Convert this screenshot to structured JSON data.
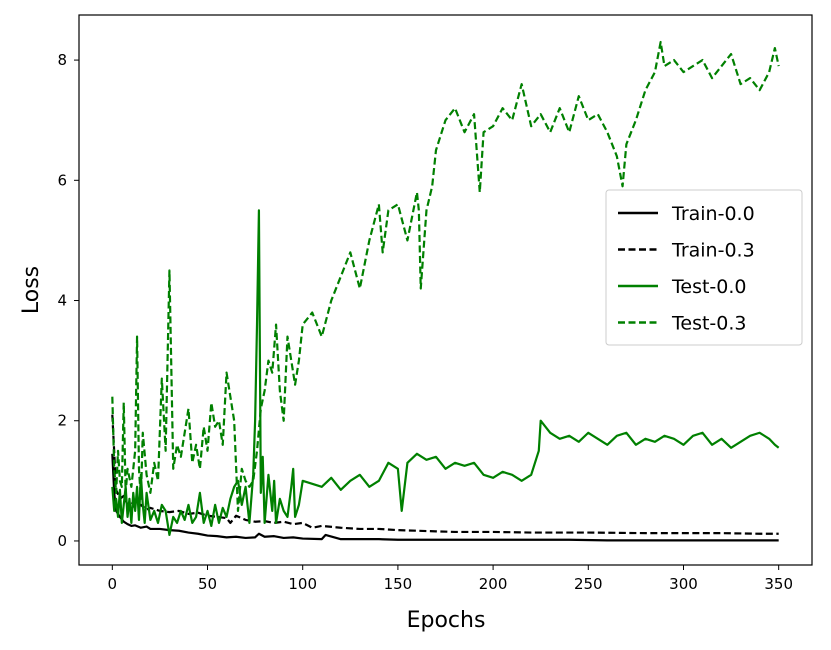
{
  "chart_data": {
    "type": "line",
    "title": "",
    "xlabel": "Epochs",
    "ylabel": "Loss",
    "xlim": [
      -17.5,
      367.5
    ],
    "ylim": [
      -0.4,
      8.75
    ],
    "xticks": [
      0,
      50,
      100,
      150,
      200,
      250,
      300,
      350
    ],
    "yticks": [
      0,
      2,
      4,
      6,
      8
    ],
    "grid": false,
    "legend_position": "center-right",
    "series": [
      {
        "name": "Train-0.0",
        "color": "#000000",
        "style": "solid",
        "x": [
          0,
          1,
          2,
          4,
          6,
          8,
          10,
          12,
          15,
          18,
          20,
          25,
          30,
          35,
          40,
          45,
          50,
          55,
          60,
          65,
          70,
          75,
          77,
          80,
          85,
          90,
          95,
          100,
          110,
          112,
          120,
          130,
          140,
          150,
          160,
          170,
          180,
          190,
          200,
          220,
          240,
          260,
          280,
          300,
          320,
          340,
          350
        ],
        "y": [
          1.45,
          0.8,
          0.5,
          0.4,
          0.32,
          0.28,
          0.25,
          0.26,
          0.22,
          0.24,
          0.2,
          0.2,
          0.18,
          0.17,
          0.14,
          0.12,
          0.09,
          0.08,
          0.06,
          0.07,
          0.05,
          0.06,
          0.12,
          0.07,
          0.08,
          0.05,
          0.06,
          0.04,
          0.03,
          0.1,
          0.03,
          0.03,
          0.03,
          0.02,
          0.02,
          0.02,
          0.02,
          0.02,
          0.02,
          0.02,
          0.02,
          0.01,
          0.01,
          0.01,
          0.01,
          0.01,
          0.01
        ]
      },
      {
        "name": "Train-0.3",
        "color": "#000000",
        "style": "dashed",
        "x": [
          0,
          2,
          4,
          6,
          8,
          10,
          12,
          15,
          18,
          20,
          25,
          30,
          35,
          40,
          45,
          50,
          55,
          60,
          62,
          65,
          70,
          75,
          80,
          85,
          90,
          95,
          100,
          105,
          110,
          120,
          130,
          140,
          150,
          160,
          170,
          180,
          200,
          220,
          250,
          280,
          300,
          320,
          340,
          350
        ],
        "y": [
          2.1,
          0.85,
          0.7,
          0.75,
          0.6,
          0.65,
          0.55,
          0.6,
          0.52,
          0.55,
          0.5,
          0.48,
          0.5,
          0.45,
          0.47,
          0.42,
          0.4,
          0.38,
          0.3,
          0.42,
          0.35,
          0.32,
          0.33,
          0.3,
          0.32,
          0.28,
          0.3,
          0.22,
          0.25,
          0.22,
          0.2,
          0.2,
          0.18,
          0.17,
          0.16,
          0.15,
          0.15,
          0.14,
          0.14,
          0.13,
          0.13,
          0.13,
          0.12,
          0.12
        ]
      },
      {
        "name": "Test-0.0",
        "color": "#008000",
        "style": "solid",
        "x": [
          0,
          1,
          2,
          3,
          4,
          5,
          6,
          7,
          8,
          9,
          10,
          11,
          12,
          13,
          14,
          15,
          16,
          17,
          18,
          20,
          22,
          24,
          26,
          28,
          30,
          32,
          34,
          36,
          38,
          40,
          42,
          44,
          46,
          48,
          50,
          52,
          54,
          56,
          58,
          60,
          62,
          64,
          66,
          68,
          70,
          72,
          74,
          75,
          76,
          77,
          78,
          79,
          80,
          82,
          84,
          85,
          86,
          88,
          90,
          92,
          94,
          95,
          96,
          98,
          100,
          105,
          110,
          115,
          120,
          125,
          130,
          135,
          140,
          145,
          150,
          152,
          155,
          160,
          165,
          170,
          175,
          180,
          185,
          190,
          195,
          200,
          205,
          210,
          215,
          220,
          222,
          224,
          225,
          230,
          235,
          240,
          245,
          250,
          255,
          260,
          265,
          270,
          275,
          280,
          285,
          290,
          295,
          300,
          305,
          310,
          315,
          320,
          325,
          330,
          335,
          340,
          345,
          348,
          350
        ],
        "y": [
          0.9,
          0.5,
          0.7,
          0.4,
          0.85,
          0.3,
          0.6,
          0.9,
          0.4,
          0.7,
          0.3,
          0.8,
          0.5,
          0.9,
          0.35,
          1.1,
          0.6,
          0.3,
          0.8,
          0.35,
          0.5,
          0.3,
          0.6,
          0.5,
          0.1,
          0.4,
          0.3,
          0.5,
          0.35,
          0.6,
          0.3,
          0.4,
          0.8,
          0.3,
          0.5,
          0.25,
          0.6,
          0.3,
          0.55,
          0.4,
          0.7,
          0.9,
          1.0,
          0.6,
          0.9,
          0.3,
          1.1,
          2.0,
          3.6,
          5.5,
          0.8,
          1.4,
          0.3,
          1.1,
          0.5,
          1.0,
          0.3,
          0.7,
          0.5,
          0.4,
          0.9,
          1.2,
          0.4,
          0.6,
          1.0,
          0.95,
          0.9,
          1.05,
          0.85,
          1.0,
          1.1,
          0.9,
          1.0,
          1.3,
          1.2,
          0.5,
          1.3,
          1.45,
          1.35,
          1.4,
          1.2,
          1.3,
          1.25,
          1.3,
          1.1,
          1.05,
          1.15,
          1.1,
          1.0,
          1.1,
          1.3,
          1.5,
          2.0,
          1.8,
          1.7,
          1.75,
          1.65,
          1.8,
          1.7,
          1.6,
          1.75,
          1.8,
          1.6,
          1.7,
          1.65,
          1.75,
          1.7,
          1.6,
          1.75,
          1.8,
          1.6,
          1.7,
          1.55,
          1.65,
          1.75,
          1.8,
          1.7,
          1.6,
          1.55
        ]
      },
      {
        "name": "Test-0.3",
        "color": "#008000",
        "style": "dashed",
        "x": [
          0,
          1,
          2,
          3,
          4,
          5,
          6,
          7,
          8,
          10,
          12,
          13,
          14,
          15,
          16,
          18,
          20,
          22,
          24,
          26,
          28,
          30,
          32,
          34,
          36,
          38,
          40,
          42,
          44,
          46,
          48,
          50,
          52,
          54,
          56,
          58,
          60,
          62,
          64,
          66,
          68,
          70,
          72,
          74,
          76,
          78,
          80,
          82,
          84,
          86,
          88,
          90,
          92,
          94,
          96,
          98,
          100,
          105,
          110,
          115,
          120,
          125,
          130,
          135,
          140,
          142,
          145,
          150,
          155,
          160,
          161,
          162,
          165,
          168,
          170,
          175,
          180,
          185,
          190,
          193,
          195,
          200,
          205,
          210,
          215,
          220,
          225,
          230,
          235,
          240,
          245,
          250,
          255,
          260,
          265,
          268,
          270,
          275,
          280,
          285,
          288,
          290,
          295,
          300,
          305,
          310,
          315,
          320,
          325,
          330,
          335,
          340,
          345,
          348,
          350
        ],
        "y": [
          2.4,
          1.2,
          0.8,
          1.5,
          1.0,
          0.9,
          2.3,
          0.8,
          1.2,
          0.9,
          1.5,
          3.4,
          1.2,
          0.7,
          1.8,
          1.1,
          0.8,
          1.3,
          1.0,
          2.7,
          1.5,
          4.5,
          1.2,
          1.6,
          1.4,
          1.8,
          2.2,
          1.3,
          1.6,
          1.2,
          1.9,
          1.5,
          2.3,
          1.9,
          2.0,
          1.6,
          2.8,
          2.4,
          2.0,
          0.5,
          1.2,
          1.0,
          0.9,
          1.0,
          1.5,
          2.2,
          2.5,
          3.0,
          2.8,
          3.6,
          2.5,
          2.0,
          3.4,
          3.0,
          2.6,
          3.0,
          3.6,
          3.8,
          3.4,
          4.0,
          4.4,
          4.8,
          4.2,
          5.0,
          5.6,
          4.8,
          5.5,
          5.6,
          5.0,
          5.8,
          5.5,
          4.2,
          5.5,
          5.9,
          6.5,
          7.0,
          7.2,
          6.8,
          7.1,
          5.8,
          6.8,
          6.9,
          7.2,
          7.0,
          7.6,
          6.9,
          7.1,
          6.8,
          7.2,
          6.8,
          7.4,
          7.0,
          7.1,
          6.8,
          6.4,
          5.9,
          6.6,
          7.0,
          7.5,
          7.8,
          8.3,
          7.9,
          8.0,
          7.8,
          7.9,
          8.0,
          7.7,
          7.9,
          8.1,
          7.6,
          7.7,
          7.5,
          7.8,
          8.2,
          7.9
        ]
      }
    ]
  }
}
